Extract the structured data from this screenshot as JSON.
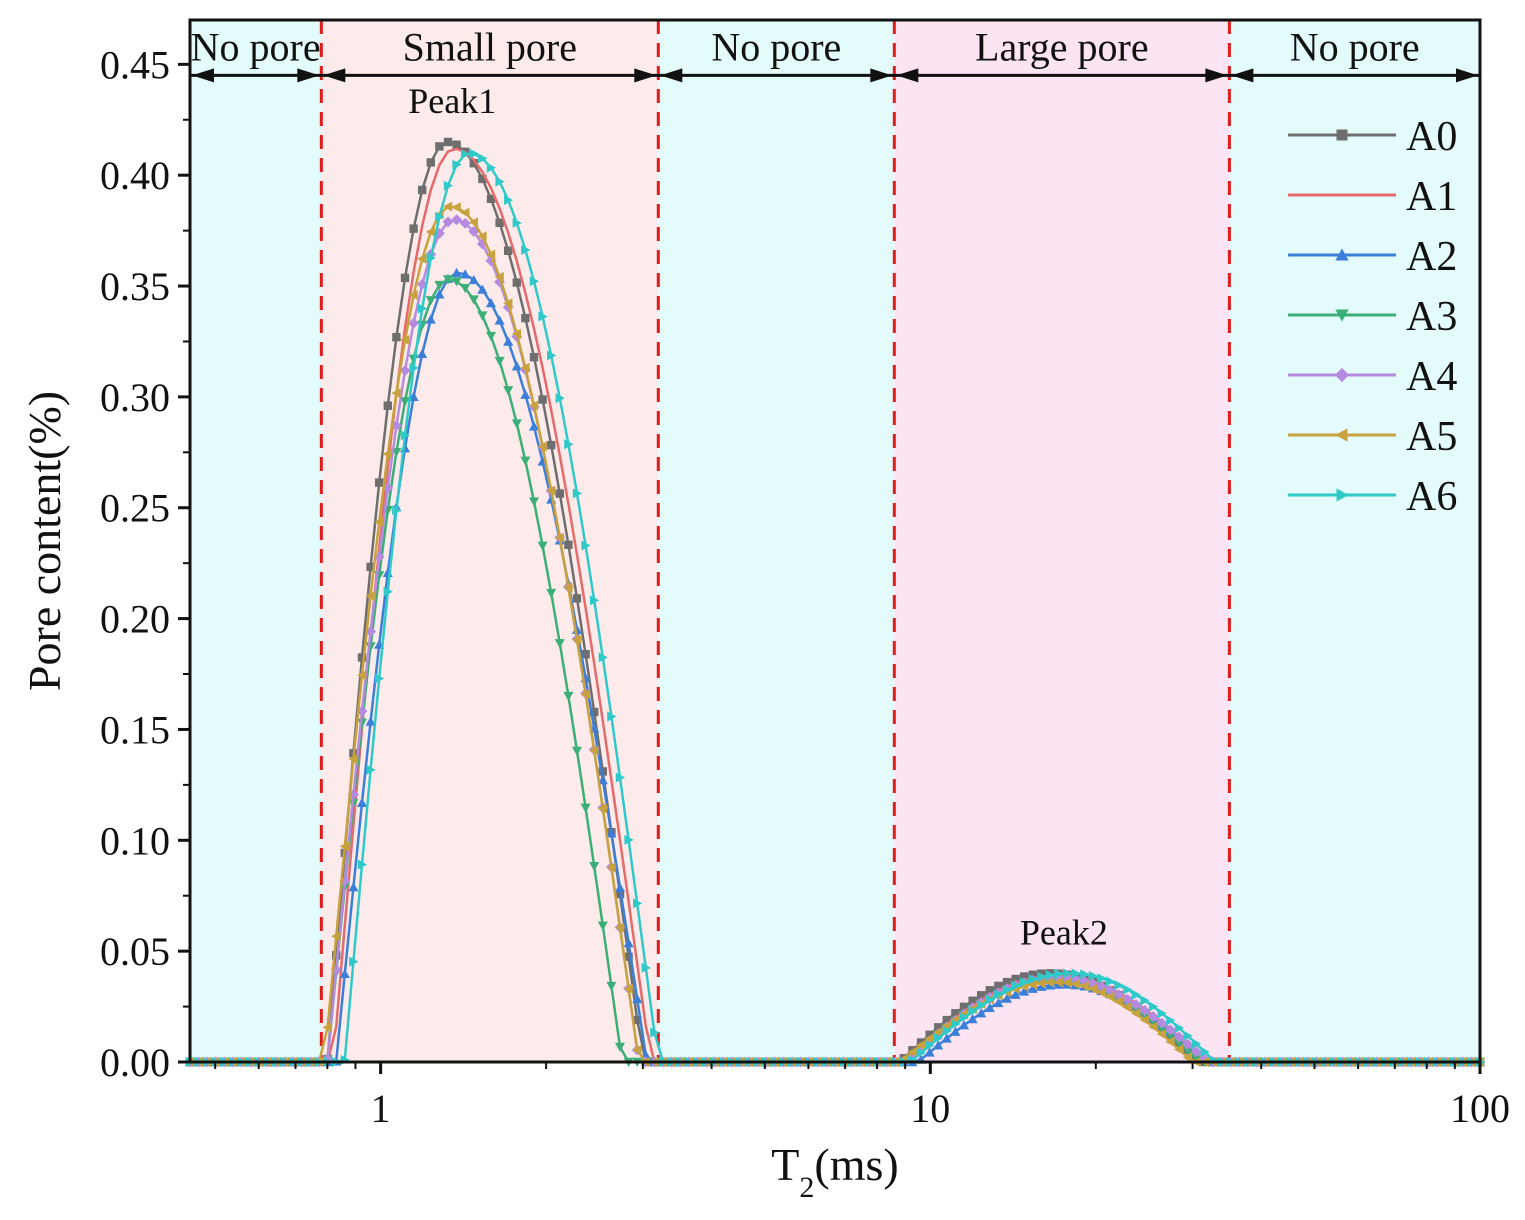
{
  "chart_data": {
    "type": "line",
    "xscale": "log",
    "xlim": [
      0.45,
      100
    ],
    "ylim": [
      0,
      0.47
    ],
    "xlabel": {
      "main": "T",
      "sub": "2",
      "unit": "(ms)"
    },
    "ylabel": "Pore content(%)",
    "x_ticks": [
      {
        "value": 1,
        "label": "1"
      },
      {
        "value": 10,
        "label": "10"
      },
      {
        "value": 100,
        "label": "100"
      }
    ],
    "y_ticks": [
      {
        "value": 0.0,
        "label": "0.00"
      },
      {
        "value": 0.05,
        "label": "0.05"
      },
      {
        "value": 0.1,
        "label": "0.10"
      },
      {
        "value": 0.15,
        "label": "0.15"
      },
      {
        "value": 0.2,
        "label": "0.20"
      },
      {
        "value": 0.25,
        "label": "0.25"
      },
      {
        "value": 0.3,
        "label": "0.30"
      },
      {
        "value": 0.35,
        "label": "0.35"
      },
      {
        "value": 0.4,
        "label": "0.40"
      },
      {
        "value": 0.45,
        "label": "0.45"
      }
    ],
    "regions": [
      {
        "label": "No pore",
        "x0": 0.45,
        "x1": 0.78,
        "fill": "#e4fbfb"
      },
      {
        "label": "Small pore",
        "x0": 0.78,
        "x1": 3.2,
        "fill": "#fcebea"
      },
      {
        "label": "No pore",
        "x0": 3.2,
        "x1": 8.6,
        "fill": "#e4fbfb"
      },
      {
        "label": "Large pore",
        "x0": 8.6,
        "x1": 35,
        "fill": "#fce4f2"
      },
      {
        "label": "No pore",
        "x0": 35,
        "x1": 100,
        "fill": "#e4fbfb"
      }
    ],
    "boundary_lines": [
      0.78,
      3.2,
      8.6,
      35
    ],
    "band_y": 0.445,
    "annotations": [
      {
        "text": "Peak1",
        "x": 1.35,
        "y": 0.428
      },
      {
        "text": "Peak2",
        "x": 17.5,
        "y": 0.053
      }
    ],
    "legend_position": "top-right",
    "series": [
      {
        "name": "A0",
        "color": "#6e6e6e",
        "marker": "square",
        "peak1": {
          "start": 0.8,
          "peak_x": 1.32,
          "peak_y": 0.415,
          "end": 3.0
        },
        "peak2": {
          "start": 8.8,
          "peak_x": 16.5,
          "peak_y": 0.04,
          "end": 31
        }
      },
      {
        "name": "A1",
        "color": "#e56b6b",
        "marker": "circle",
        "peak1": {
          "start": 0.82,
          "peak_x": 1.36,
          "peak_y": 0.412,
          "end": 3.1
        },
        "peak2": {
          "start": 8.9,
          "peak_x": 17.0,
          "peak_y": 0.039,
          "end": 32
        }
      },
      {
        "name": "A2",
        "color": "#3b7fd9",
        "marker": "triangle-up",
        "peak1": {
          "start": 0.83,
          "peak_x": 1.38,
          "peak_y": 0.356,
          "end": 3.05
        },
        "peak2": {
          "start": 9.5,
          "peak_x": 17.5,
          "peak_y": 0.035,
          "end": 32
        }
      },
      {
        "name": "A3",
        "color": "#3cae78",
        "marker": "triangle-down",
        "peak1": {
          "start": 0.8,
          "peak_x": 1.33,
          "peak_y": 0.353,
          "end": 2.75
        },
        "peak2": {
          "start": 9.0,
          "peak_x": 17.0,
          "peak_y": 0.037,
          "end": 31
        }
      },
      {
        "name": "A4",
        "color": "#b58be0",
        "marker": "diamond",
        "peak1": {
          "start": 0.8,
          "peak_x": 1.36,
          "peak_y": 0.38,
          "end": 2.95
        },
        "peak2": {
          "start": 9.0,
          "peak_x": 17.0,
          "peak_y": 0.038,
          "end": 32
        }
      },
      {
        "name": "A5",
        "color": "#c8a23c",
        "marker": "triangle-left",
        "peak1": {
          "start": 0.79,
          "peak_x": 1.34,
          "peak_y": 0.386,
          "end": 2.95
        },
        "peak2": {
          "start": 8.8,
          "peak_x": 17.0,
          "peak_y": 0.036,
          "end": 30
        }
      },
      {
        "name": "A6",
        "color": "#2fc9c9",
        "marker": "triangle-right",
        "peak1": {
          "start": 0.86,
          "peak_x": 1.45,
          "peak_y": 0.41,
          "end": 3.2
        },
        "peak2": {
          "start": 9.2,
          "peak_x": 18.0,
          "peak_y": 0.04,
          "end": 33
        }
      }
    ]
  }
}
